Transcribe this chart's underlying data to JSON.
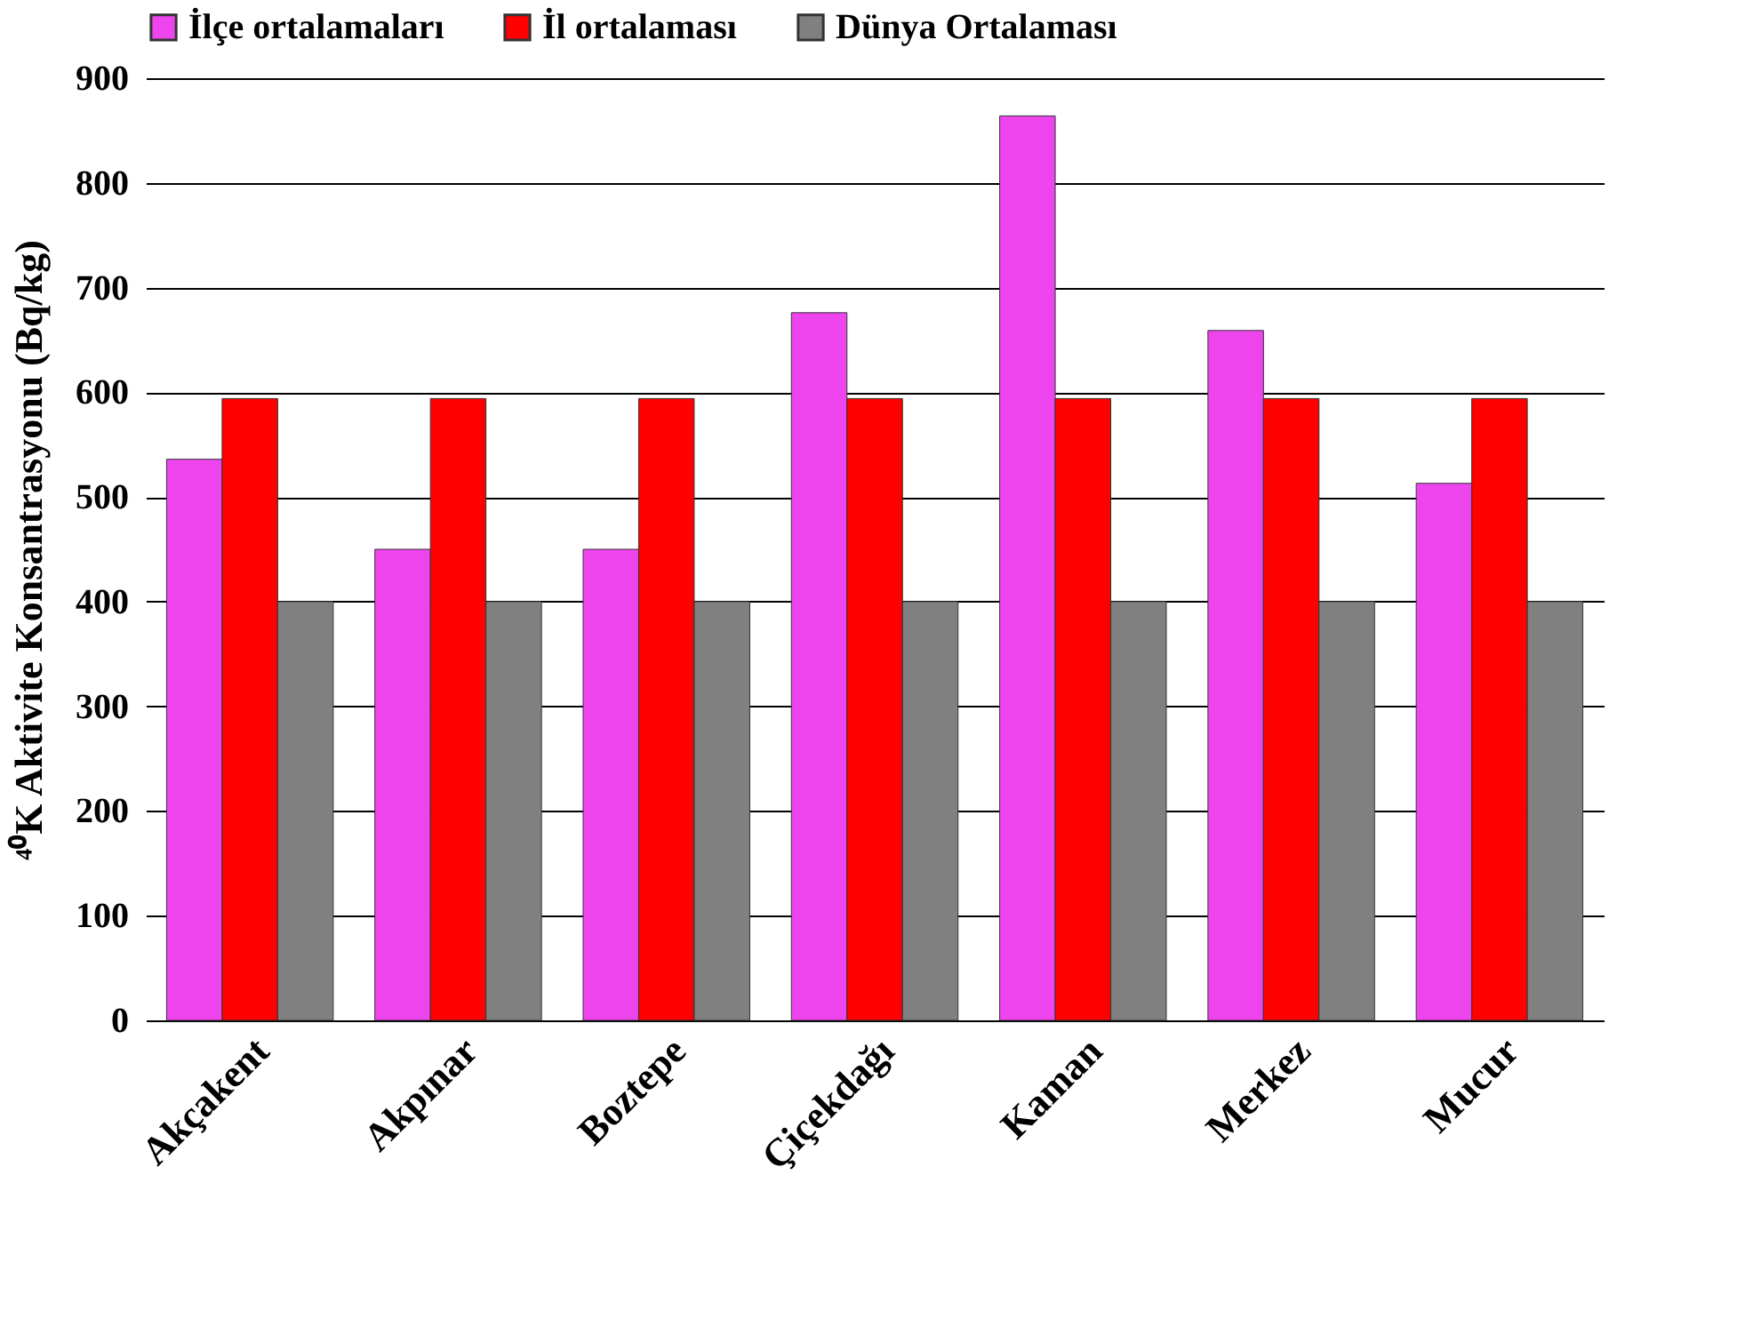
{
  "chart_data": {
    "type": "bar",
    "ylabel": "⁴⁰K Aktivite Konsantrasyonu (Bq/kg)",
    "categories": [
      "Akçakent",
      "Akpınar",
      "Boztepe",
      "Çiçekdağı",
      "Kaman",
      "Merkez",
      "Mucur"
    ],
    "series": [
      {
        "name": "İlçe ortalamaları",
        "color": "#ee44ee",
        "values": [
          536,
          450,
          450,
          676,
          864,
          659,
          513
        ]
      },
      {
        "name": "İl ortalaması",
        "color": "#ff0000",
        "values": [
          594,
          594,
          594,
          594,
          594,
          594,
          594
        ]
      },
      {
        "name": "Dünya Ortalaması",
        "color": "#808080",
        "values": [
          400,
          400,
          400,
          400,
          400,
          400,
          400
        ]
      }
    ],
    "ylim": [
      0,
      900
    ],
    "yticks": [
      0,
      100,
      200,
      300,
      400,
      500,
      600,
      700,
      800,
      900
    ],
    "grid": "y",
    "legend": "top"
  }
}
